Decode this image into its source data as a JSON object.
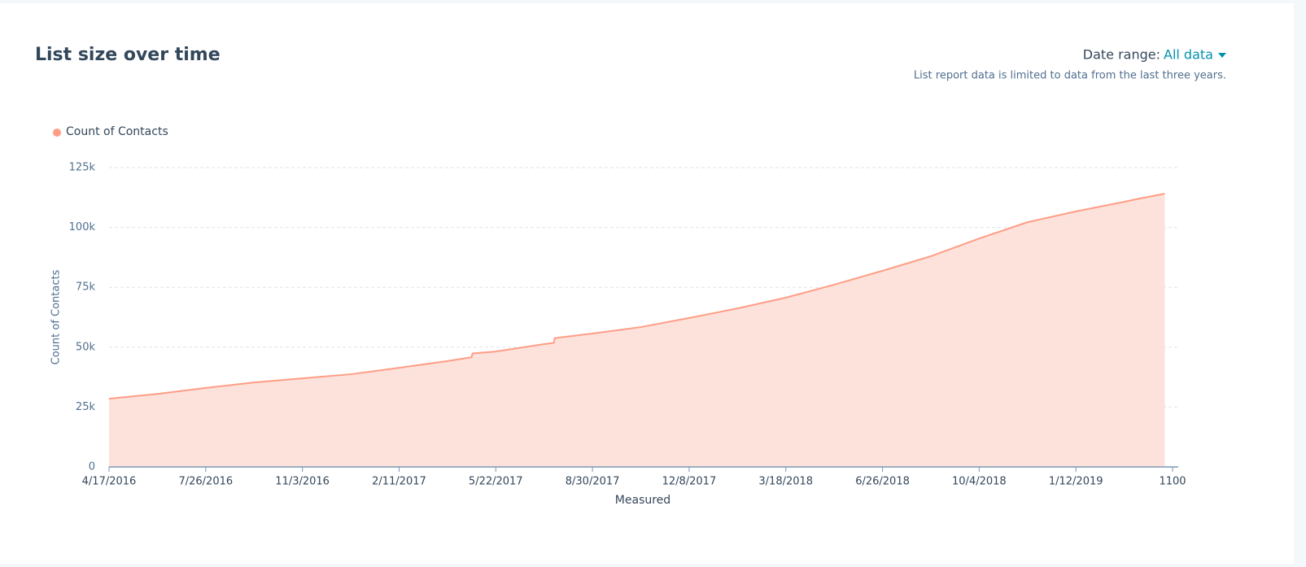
{
  "header": {
    "title": "List size over time",
    "date_range_label": "Date range:",
    "date_range_value": "All data",
    "note": "List report data is limited to data from the last three years."
  },
  "chart_data": {
    "type": "area",
    "x_label": "Measured",
    "y_label": "Count of Contacts",
    "x": [
      0,
      50,
      100,
      150,
      200,
      250,
      300,
      350,
      375,
      376,
      400,
      450,
      460,
      461,
      500,
      550,
      600,
      650,
      700,
      750,
      800,
      850,
      900,
      950,
      1000,
      1050,
      1065,
      1092
    ],
    "series": [
      {
        "name": "Count of Contacts",
        "color": "#ff9d85",
        "fill": "#fde2dc",
        "values": [
          28500,
          30500,
          33000,
          35300,
          37000,
          38700,
          41400,
          44200,
          45800,
          47400,
          48200,
          51300,
          51800,
          53800,
          55700,
          58400,
          62200,
          66200,
          70700,
          76100,
          81900,
          88000,
          95400,
          102200,
          106700,
          110700,
          112000,
          114100
        ]
      }
    ],
    "xlim": [
      0,
      1100
    ],
    "xticks": [
      {
        "value": 0,
        "label": "4/17/2016"
      },
      {
        "value": 100,
        "label": "7/26/2016"
      },
      {
        "value": 200,
        "label": "11/3/2016"
      },
      {
        "value": 300,
        "label": "2/11/2017"
      },
      {
        "value": 400,
        "label": "5/22/2017"
      },
      {
        "value": 500,
        "label": "8/30/2017"
      },
      {
        "value": 600,
        "label": "12/8/2017"
      },
      {
        "value": 700,
        "label": "3/18/2018"
      },
      {
        "value": 800,
        "label": "6/26/2018"
      },
      {
        "value": 900,
        "label": "10/4/2018"
      },
      {
        "value": 1000,
        "label": "1/12/2019"
      },
      1100
    ],
    "ylim": [
      0,
      125000
    ],
    "yticks": [
      0,
      {
        "value": 25000,
        "label": "25k"
      },
      {
        "value": 50000,
        "label": "50k"
      },
      {
        "value": 75000,
        "label": "75k"
      },
      {
        "value": 100000,
        "label": "100k"
      },
      {
        "value": 125000,
        "label": "125k"
      }
    ],
    "grid": true
  }
}
